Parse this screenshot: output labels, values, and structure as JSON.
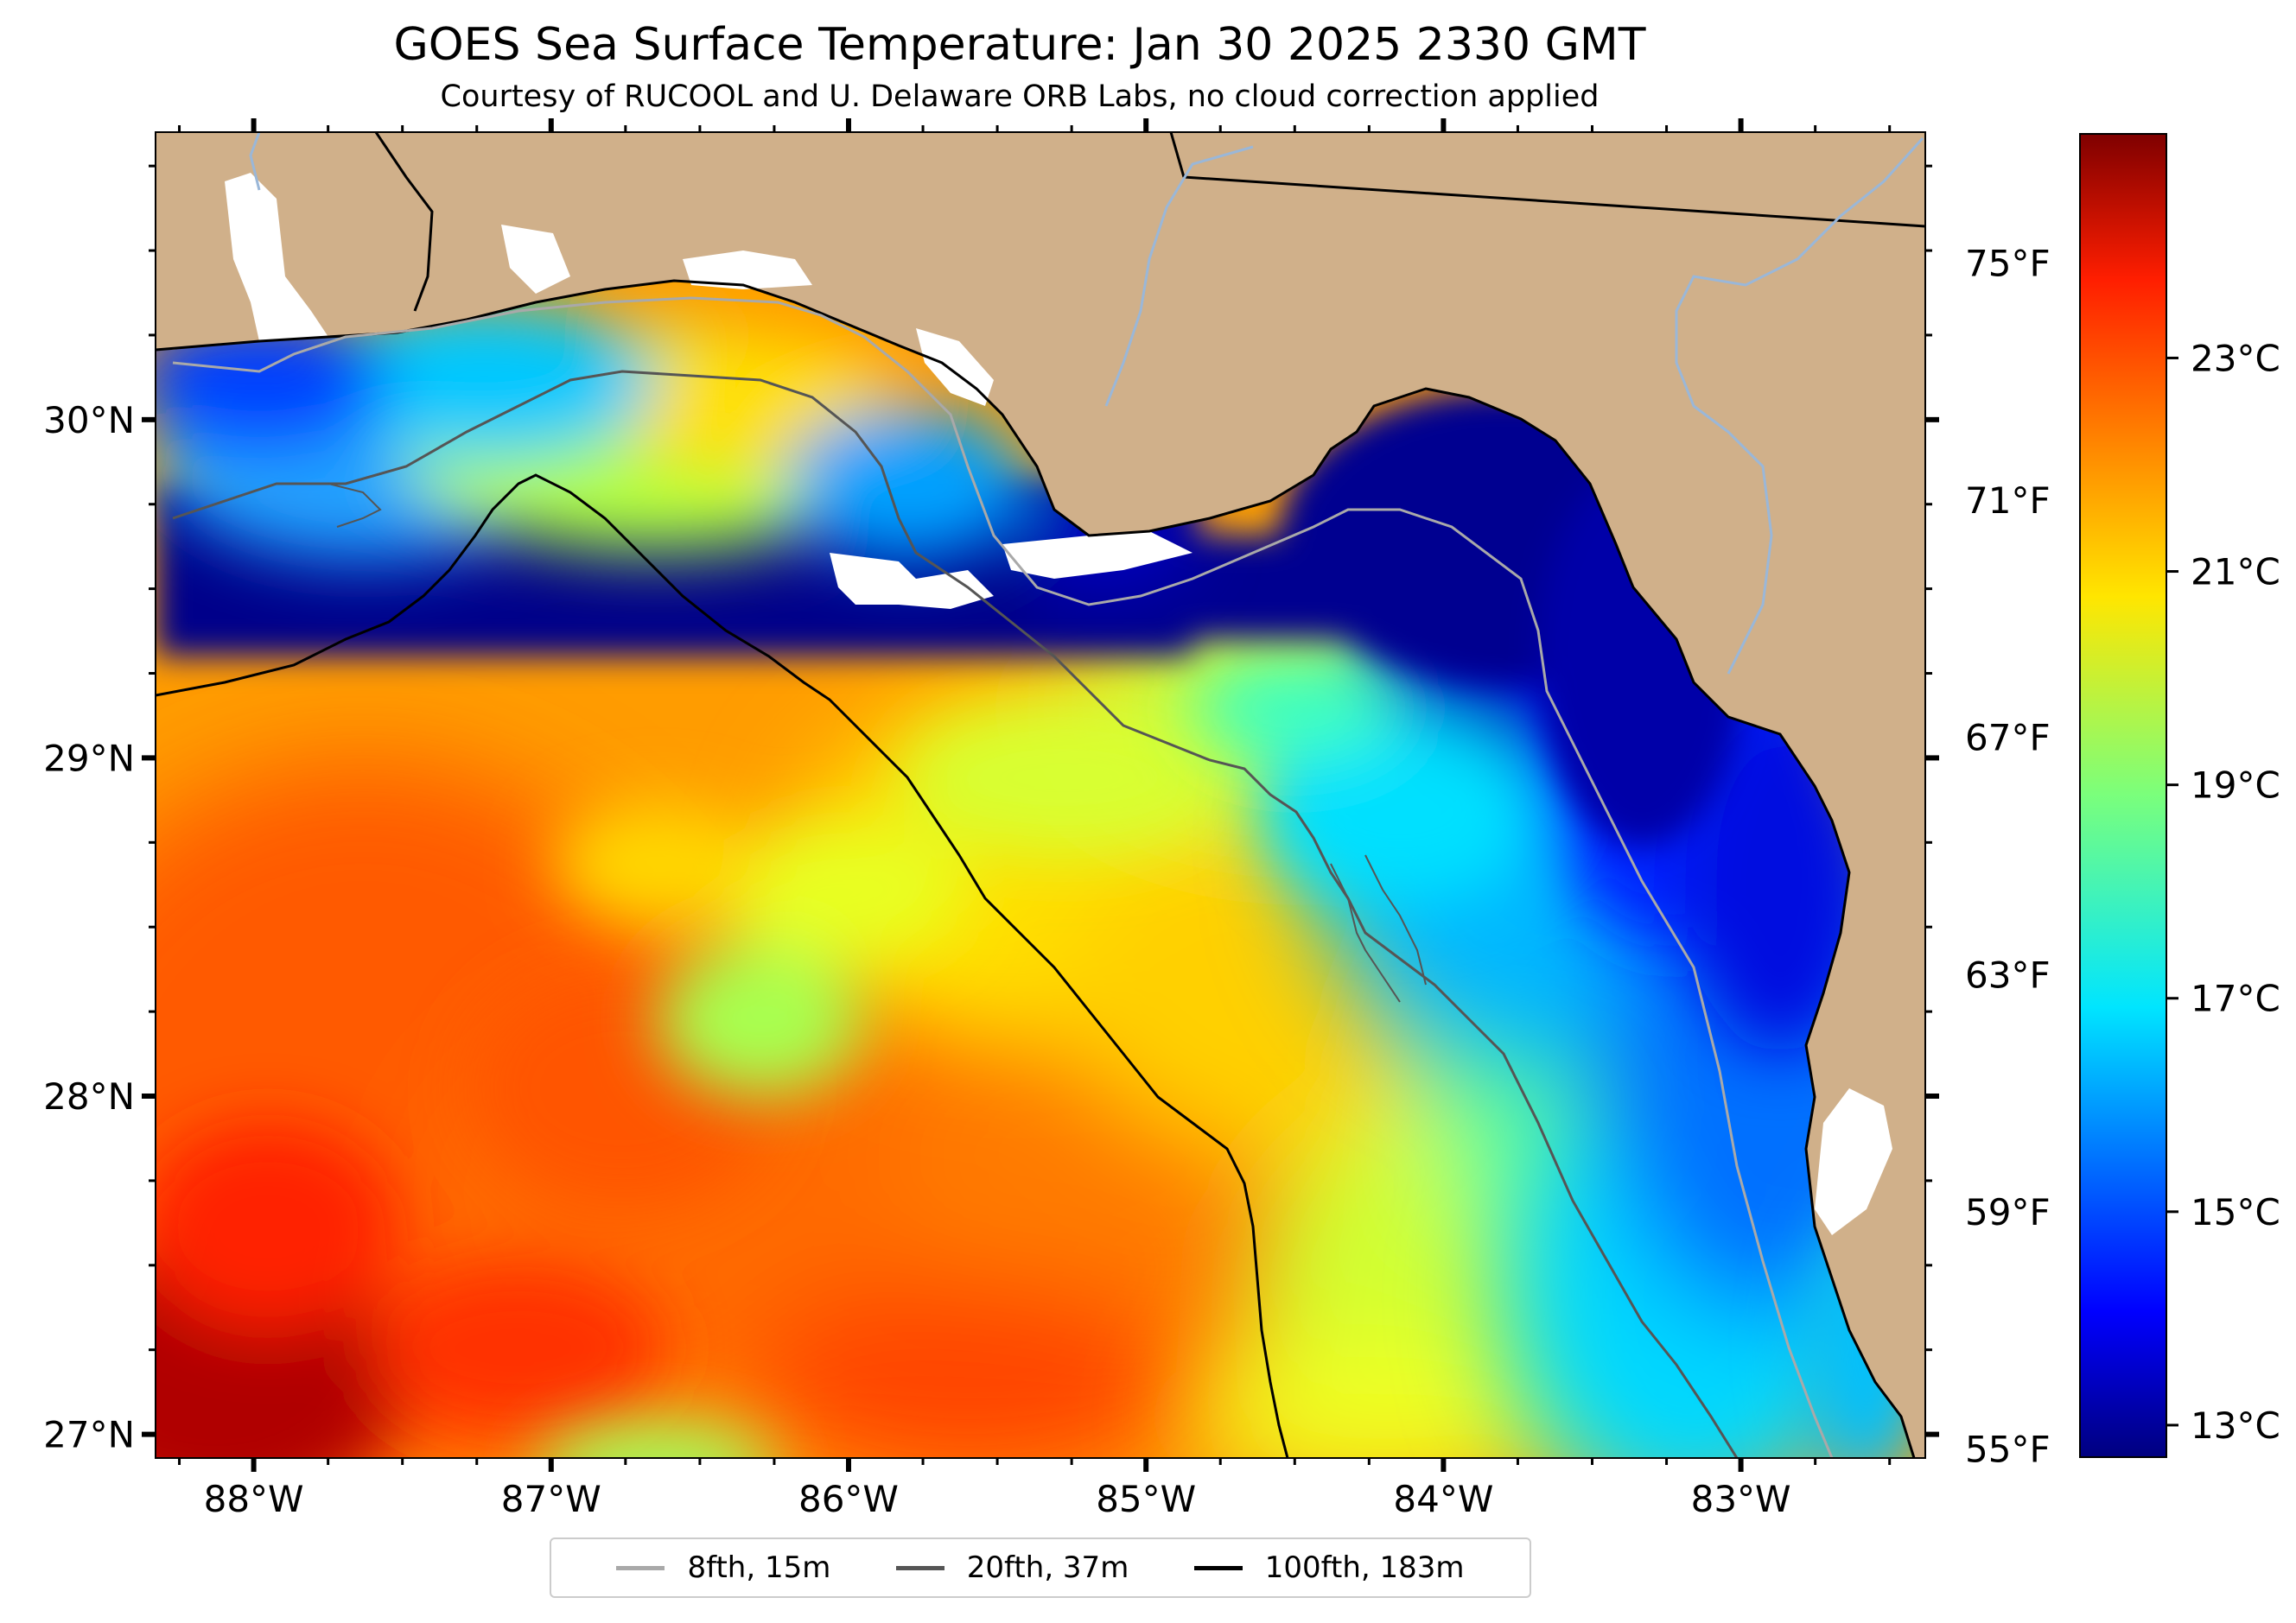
{
  "title": "GOES Sea Surface Temperature: Jan 30 2025 2330 GMT",
  "subtitle": "Courtesy of RUCOOL and U. Delaware ORB Labs, no cloud correction applied",
  "map": {
    "lon_range": [
      -88.33,
      -82.38
    ],
    "lat_range": [
      26.93,
      30.85
    ],
    "lon_ticks": [
      "88°W",
      "87°W",
      "86°W",
      "85°W",
      "84°W",
      "83°W"
    ],
    "lat_ticks": [
      "30°N",
      "29°N",
      "28°N",
      "27°N"
    ],
    "fahrenheit_ticks": [
      "75°F",
      "71°F",
      "67°F",
      "63°F",
      "59°F",
      "55°F"
    ],
    "land_color": "#d0b08a",
    "no_data_color": "#ffffff"
  },
  "colorbar": {
    "colormap": "jet",
    "range_c": [
      12.7,
      25.1
    ],
    "ticks": [
      "23°C",
      "21°C",
      "19°C",
      "17°C",
      "15°C",
      "13°C"
    ]
  },
  "legend": {
    "items": [
      {
        "label": "8fth, 15m",
        "color": "#a9a9a9"
      },
      {
        "label": "20fth, 37m",
        "color": "#555555"
      },
      {
        "label": "100fth, 183m",
        "color": "#000000"
      }
    ]
  }
}
